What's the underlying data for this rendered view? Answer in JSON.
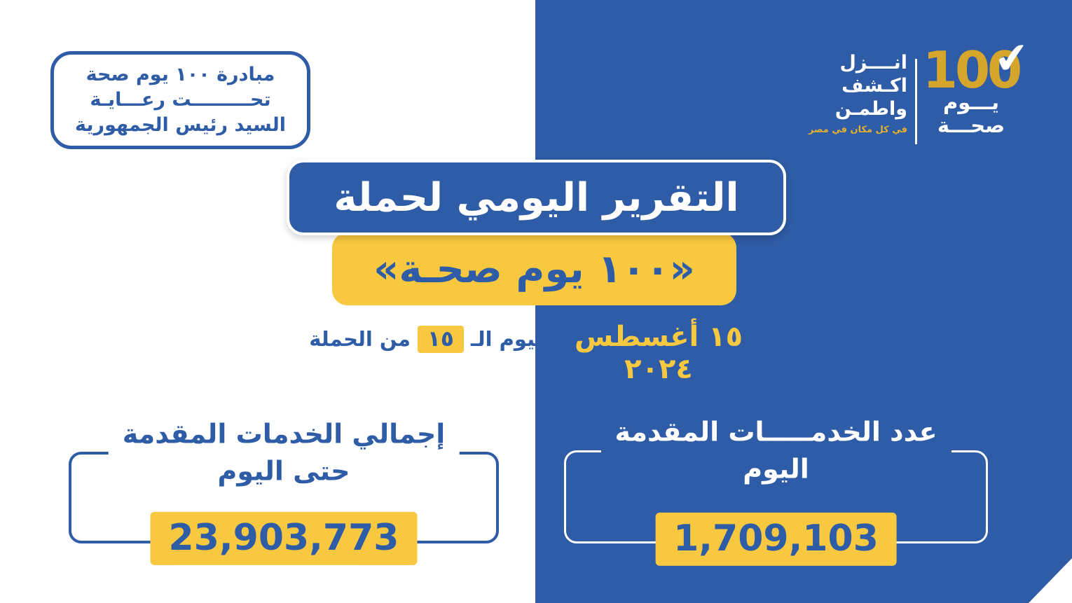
{
  "colors": {
    "panel_blue": "#2e5ca6",
    "accent_yellow": "#f8c840",
    "logo_gold": "#d5a62b",
    "tagline_yellow": "#e2af2e",
    "white": "#ffffff"
  },
  "initiative_box": {
    "line1": "مبادرة ١٠٠ يوم صحة",
    "line2": "تحـــــــــت رعـــايـة",
    "line3": "السيد رئيس الجمهورية"
  },
  "logo": {
    "number": "100",
    "checkmark": "✔",
    "word1": "يـــوم",
    "word2": "صحـــة",
    "slogan_line1": "انــــزل",
    "slogan_line2": "اكـشف",
    "slogan_line3": "واطمـن",
    "tagline": "في كل مكان في مصر"
  },
  "title": {
    "main": "التقرير اليومي لحملة",
    "sub": "«١٠٠ يوم صحـة»"
  },
  "date": {
    "full_date": "١٥ أغسطس ٢٠٢٤",
    "day_prefix": "اليوم الـ",
    "day_number": "١٥",
    "day_suffix": "من الحملة"
  },
  "stats": {
    "total": {
      "label_line1": "إجمالي الخدمات المقدمة",
      "label_line2": "حتى اليوم",
      "value": "23,903,773"
    },
    "today": {
      "label_line1": "عدد الخدمـــــات المقدمة",
      "label_line2": "اليوم",
      "value": "1,709,103"
    }
  }
}
